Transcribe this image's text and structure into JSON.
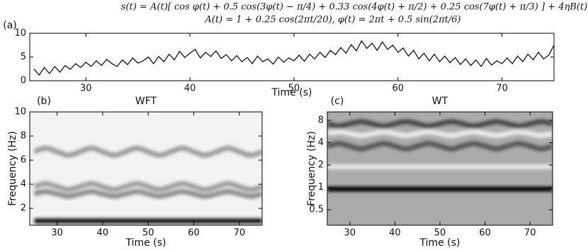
{
  "header": {
    "formula": "s(t) = A(t)[ cos φ(t) + 0.5 cos(3φ(t) − π/4) + 0.33 cos(4φ(t) + π/2) + 0.25 cos(7φ(t) + π/3) ] + 4ηB(t)",
    "definitions": "A(t) = 1 + 0.25 cos(2πt/20),  φ(t) = 2πt + 0.5 sin(2πt/6)"
  },
  "chart_data": [
    {
      "type": "line",
      "label": "(a)",
      "xlabel": "Time (s)",
      "x": [
        25,
        25.5,
        26,
        26.5,
        27,
        27.5,
        28,
        28.5,
        29,
        29.5,
        30,
        30.5,
        31,
        31.5,
        32,
        32.5,
        33,
        33.5,
        34,
        34.5,
        35,
        35.5,
        36,
        36.5,
        37,
        37.5,
        38,
        38.5,
        39,
        39.5,
        40,
        40.5,
        41,
        41.5,
        42,
        42.5,
        43,
        43.5,
        44,
        44.5,
        45,
        45.5,
        46,
        46.5,
        47,
        47.5,
        48,
        48.5,
        49,
        49.5,
        50,
        50.5,
        51,
        51.5,
        52,
        52.5,
        53,
        53.5,
        54,
        54.5,
        55,
        55.5,
        56,
        56.5,
        57,
        57.5,
        58,
        58.5,
        59,
        59.5,
        60,
        60.5,
        61,
        61.5,
        62,
        62.5,
        63,
        63.5,
        64,
        64.5,
        65,
        65.5,
        66,
        66.5,
        67,
        67.5,
        68,
        68.5,
        69,
        69.5,
        70,
        70.5,
        71,
        71.5,
        72,
        72.5,
        73,
        73.5,
        74,
        74.5,
        75
      ],
      "series": [
        {
          "color": "#000000",
          "values": [
            2.5,
            1.2,
            2.8,
            1.5,
            3.0,
            1.8,
            3.2,
            2.4,
            3.6,
            2.8,
            3.9,
            3.0,
            4.2,
            3.2,
            4.5,
            3.6,
            3.0,
            4.4,
            3.4,
            4.8,
            3.7,
            4.2,
            5.0,
            3.6,
            5.1,
            4.0,
            5.6,
            4.4,
            6.2,
            4.9,
            5.8,
            6.6,
            4.8,
            6.0,
            5.1,
            6.3,
            4.7,
            5.5,
            4.2,
            5.3,
            4.0,
            4.9,
            3.6,
            5.2,
            4.0,
            4.6,
            3.5,
            5.0,
            3.9,
            4.8,
            4.2,
            5.4,
            4.1,
            5.6,
            4.6,
            6.0,
            4.9,
            6.4,
            5.5,
            7.0,
            5.8,
            7.6,
            6.3,
            8.4,
            6.8,
            7.9,
            6.4,
            8.2,
            6.6,
            7.5,
            6.0,
            6.9,
            5.2,
            6.4,
            4.6,
            5.8,
            4.2,
            5.6,
            4.0,
            5.2,
            3.8,
            4.9,
            3.4,
            4.6,
            3.2,
            4.4,
            3.0,
            4.7,
            3.3,
            4.2,
            3.6,
            4.8,
            3.6,
            5.2,
            4.0,
            5.6,
            4.4,
            6.0,
            4.6,
            5.4,
            7.5
          ]
        }
      ],
      "xlim": [
        24.6,
        75
      ],
      "ylim": [
        0,
        10
      ],
      "xticks": [
        30,
        40,
        50,
        60,
        70
      ],
      "yticks": [
        0,
        5,
        10
      ]
    },
    {
      "type": "spectrogram",
      "label": "(b)",
      "title": "WFT",
      "xlabel": "Time (s)",
      "ylabel": "Frequency (Hz)",
      "x": [
        25,
        27.5,
        30,
        32.5,
        35,
        37.5,
        40,
        42.5,
        45,
        47.5,
        50,
        52.5,
        55,
        57.5,
        60,
        62.5,
        65,
        67.5,
        70,
        72.5,
        75
      ],
      "series": [
        {
          "color": "#111111",
          "values": [
            0.95,
            0.95,
            0.95,
            0.95,
            0.95,
            0.95,
            0.95,
            0.95,
            0.95,
            0.95,
            0.95,
            0.95,
            0.95,
            0.95,
            0.95,
            0.95,
            0.95,
            0.95,
            0.95,
            0.95,
            0.95
          ]
        },
        {
          "color": "#8a8a8a",
          "values": [
            3.2,
            3.4,
            3.2,
            3.0,
            3.2,
            3.4,
            3.2,
            3.0,
            3.2,
            3.4,
            3.2,
            3.0,
            3.2,
            3.4,
            3.2,
            3.0,
            3.2,
            3.4,
            3.2,
            3.0,
            3.2
          ]
        },
        {
          "color": "#9a9a9a",
          "values": [
            3.8,
            4.05,
            3.8,
            3.55,
            3.8,
            4.05,
            3.8,
            3.55,
            3.8,
            4.05,
            3.8,
            3.55,
            3.8,
            4.05,
            3.8,
            3.55,
            3.8,
            4.05,
            3.8,
            3.55,
            3.8
          ]
        },
        {
          "color": "#9a9a9a",
          "values": [
            6.7,
            7.0,
            6.7,
            6.4,
            6.7,
            7.0,
            6.7,
            6.4,
            6.7,
            7.0,
            6.7,
            6.4,
            6.7,
            7.0,
            6.7,
            6.4,
            6.7,
            7.0,
            6.7,
            6.4,
            6.7
          ]
        }
      ],
      "xlim": [
        24,
        75
      ],
      "ylim": [
        0.6,
        10
      ],
      "xticks": [
        30,
        40,
        50,
        60,
        70
      ],
      "yticks": [
        2,
        4,
        6,
        8,
        10
      ]
    },
    {
      "type": "spectrogram",
      "label": "(c)",
      "title": "WT",
      "xlabel": "Time (s)",
      "ylabel": "Frequency (Hz)",
      "yscale": "log",
      "x": [
        25,
        27.5,
        30,
        32.5,
        35,
        37.5,
        40,
        42.5,
        45,
        47.5,
        50,
        52.5,
        55,
        57.5,
        60,
        62.5,
        65,
        67.5,
        70,
        72.5,
        75
      ],
      "series": [
        {
          "color": "#000000",
          "values": [
            0.95,
            0.95,
            0.95,
            0.95,
            0.95,
            0.95,
            0.95,
            0.95,
            0.95,
            0.95,
            0.95,
            0.95,
            0.95,
            0.95,
            0.95,
            0.95,
            0.95,
            0.95,
            0.95,
            0.95,
            0.95
          ]
        },
        {
          "color": "#e8e8e8",
          "values": [
            1.9,
            1.9,
            1.9,
            1.9,
            1.9,
            1.9,
            1.9,
            1.9,
            1.9,
            1.9,
            1.9,
            1.9,
            1.9,
            1.9,
            1.9,
            1.9,
            1.9,
            1.9,
            1.9,
            1.9,
            1.9
          ]
        },
        {
          "color": "#555555",
          "values": [
            3.6,
            3.9,
            3.6,
            3.3,
            3.6,
            3.9,
            3.6,
            3.3,
            3.6,
            3.9,
            3.6,
            3.3,
            3.6,
            3.9,
            3.6,
            3.3,
            3.6,
            3.9,
            3.6,
            3.3,
            3.6
          ]
        },
        {
          "color": "#eeeeee",
          "values": [
            5.3,
            5.6,
            5.3,
            5.0,
            5.3,
            5.6,
            5.3,
            5.0,
            5.3,
            5.6,
            5.3,
            5.0,
            5.3,
            5.6,
            5.3,
            5.0,
            5.3,
            5.6,
            5.3,
            5.0,
            5.3
          ]
        },
        {
          "color": "#444444",
          "values": [
            7.2,
            6.7,
            7.2,
            7.7,
            7.2,
            6.7,
            7.2,
            7.7,
            7.2,
            6.7,
            7.2,
            7.7,
            7.2,
            6.7,
            7.2,
            7.7,
            7.2,
            6.7,
            7.2,
            7.7,
            7.2
          ]
        }
      ],
      "xlim": [
        25,
        75
      ],
      "ylim": [
        0.31,
        10.4
      ],
      "xticks": [
        30,
        40,
        50,
        60,
        70
      ],
      "yticks": [
        0.5,
        1,
        2,
        4,
        8
      ]
    }
  ]
}
